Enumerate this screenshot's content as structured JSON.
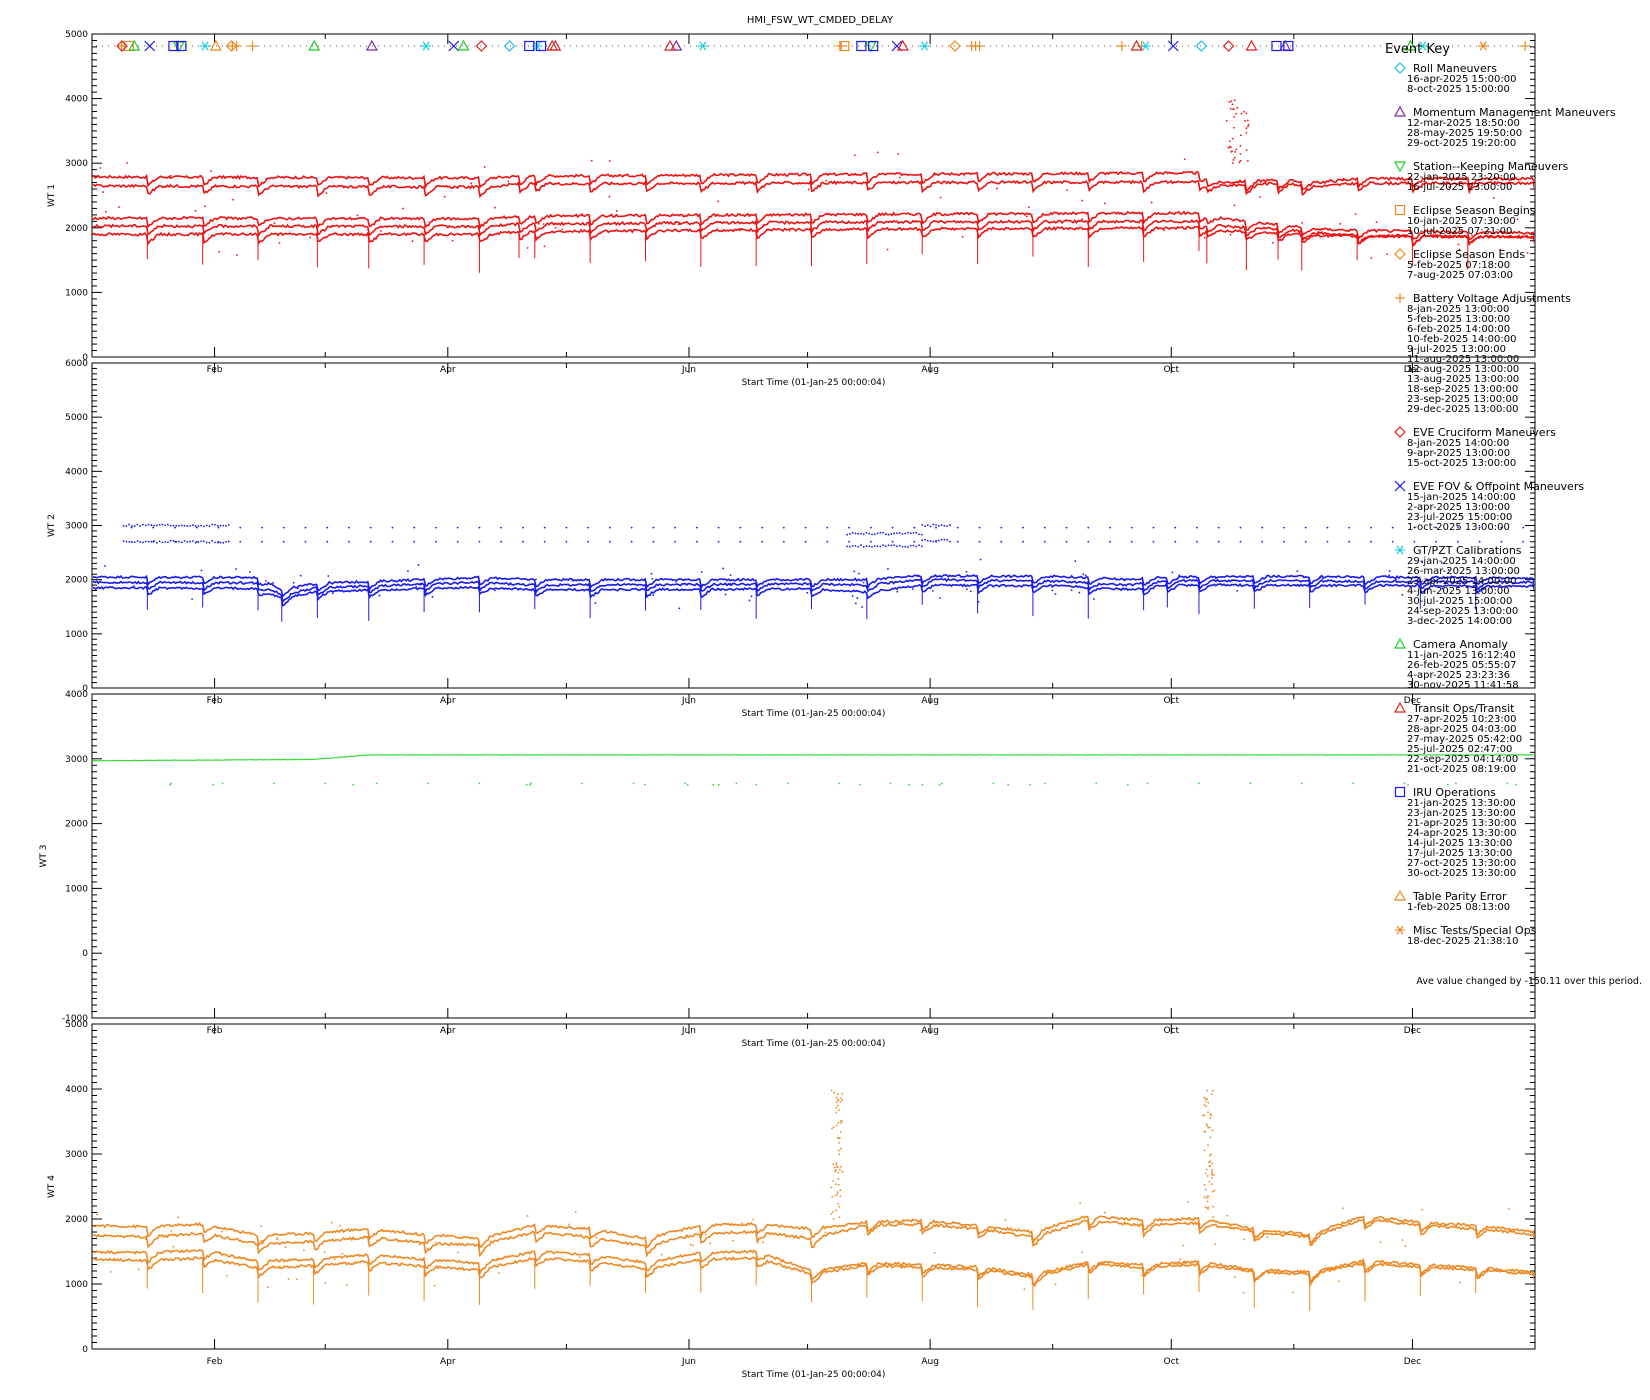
{
  "title": "HMI_FSW_WT_CMDED_DELAY",
  "x_axis_label": "Start Time (01-Jan-25 00:00:04)",
  "month_labels": [
    "Feb",
    "Apr",
    "Jun",
    "Aug",
    "Oct",
    "Dec"
  ],
  "note": "Ave value changed by -150.11 over this period.",
  "event_key": {
    "title": "Event Key",
    "events": [
      {
        "name": "Roll Maneuvers",
        "symbol": "diamond",
        "color": "#22bbee",
        "dates": [
          "16-apr-2025 15:00:00",
          "8-oct-2025 15:00:00"
        ],
        "days": [
          105.6,
          280.6
        ]
      },
      {
        "name": "Momentum Management Maneuvers",
        "symbol": "triangle",
        "color": "#7a2aa8",
        "dates": [
          "12-mar-2025 18:50:00",
          "28-may-2025 19:50:00",
          "29-oct-2025 19:20:00"
        ],
        "days": [
          70.8,
          147.8,
          301.8
        ]
      },
      {
        "name": "Station--Keeping Maneuvers",
        "symbol": "triangle-down",
        "color": "#22cc22",
        "dates": [
          "22-jan-2025 23:20:00",
          "16-jul-2025 23:00:00"
        ],
        "days": [
          21.97,
          196.96
        ]
      },
      {
        "name": "Eclipse Season Begins",
        "symbol": "square",
        "color": "#ee8822",
        "dates": [
          "10-jan-2025 07:30:00",
          "10-jul-2025 07:21:00"
        ],
        "days": [
          9.3,
          190.3
        ]
      },
      {
        "name": "Eclipse Season Ends",
        "symbol": "diamond",
        "color": "#ee8822",
        "dates": [
          "5-feb-2025 07:18:00",
          "7-aug-2025 07:03:00"
        ],
        "days": [
          35.3,
          218.3
        ]
      },
      {
        "name": "Battery Voltage Adjustments",
        "symbol": "plus",
        "color": "#ee8822",
        "dates": [
          "8-jan-2025 13:00:00",
          "5-feb-2025 13:00:00",
          "6-feb-2025 14:00:00",
          "10-feb-2025 14:00:00",
          "9-jul-2025 13:00:00",
          "11-aug-2025 13:00:00",
          "12-aug-2025 13:00:00",
          "13-aug-2025 13:00:00",
          "18-sep-2025 13:00:00",
          "23-sep-2025 13:00:00",
          "29-dec-2025 13:00:00"
        ],
        "days": [
          7.5,
          35.5,
          36.6,
          40.6,
          189.5,
          222.5,
          223.5,
          224.5,
          260.5,
          265.5,
          362.5
        ]
      },
      {
        "name": "EVE Cruciform Maneuvers",
        "symbol": "diamond",
        "color": "#dd2222",
        "dates": [
          "8-jan-2025 14:00:00",
          "9-apr-2025 13:00:00",
          "15-oct-2025 13:00:00"
        ],
        "days": [
          7.6,
          98.5,
          287.5
        ]
      },
      {
        "name": "EVE FOV & Offpoint Maneuvers",
        "symbol": "cross",
        "color": "#1a1aee",
        "dates": [
          "15-jan-2025 14:00:00",
          "2-apr-2025 13:00:00",
          "23-jul-2025 15:00:00",
          "1-oct-2025 13:00:00"
        ],
        "days": [
          14.6,
          91.5,
          203.6,
          273.5
        ]
      },
      {
        "name": "GT/PZT Calibrations",
        "symbol": "asterisk",
        "color": "#22ccdd",
        "dates": [
          "29-jan-2025 14:00:00",
          "26-mar-2025 13:00:00",
          "23-apr-2025 14:00:00",
          "4-jun-2025 13:00:00",
          "30-jul-2025 15:00:00",
          "24-sep-2025 13:00:00",
          "3-dec-2025 14:00:00"
        ],
        "days": [
          28.6,
          84.5,
          112.6,
          154.5,
          210.6,
          266.5,
          336.6
        ]
      },
      {
        "name": "Camera Anomaly",
        "symbol": "triangle",
        "color": "#22cc22",
        "dates": [
          "11-jan-2025 16:12:40",
          "26-feb-2025 05:55:07",
          "4-apr-2025 23:23:36",
          "30-nov-2025 11:41:58"
        ],
        "days": [
          10.7,
          56.2,
          93.97,
          333.5
        ]
      },
      {
        "name": "Transit Ops/Transit",
        "symbol": "triangle",
        "color": "#dd2222",
        "dates": [
          "27-apr-2025 10:23:00",
          "28-apr-2025 04:03:00",
          "27-may-2025 05:42:00",
          "25-jul-2025 02:47:00",
          "22-sep-2025 04:14:00",
          "21-oct-2025 08:19:00"
        ],
        "days": [
          116.4,
          117.2,
          146.2,
          205.1,
          264.2,
          293.3
        ]
      },
      {
        "name": "IRU Operations",
        "symbol": "square",
        "color": "#1a1aee",
        "dates": [
          "21-jan-2025 13:30:00",
          "23-jan-2025 13:30:00",
          "21-apr-2025 13:30:00",
          "24-apr-2025 13:30:00",
          "14-jul-2025 13:30:00",
          "17-jul-2025 13:30:00",
          "27-oct-2025 13:30:00",
          "30-oct-2025 13:30:00"
        ],
        "days": [
          20.6,
          22.6,
          110.6,
          113.6,
          194.6,
          197.6,
          299.6,
          302.6
        ]
      },
      {
        "name": "Table Parity Error",
        "symbol": "triangle",
        "color": "#ee8822",
        "dates": [
          "1-feb-2025 08:13:00"
        ],
        "days": [
          31.3
        ]
      },
      {
        "name": "Misc Tests/Special Ops",
        "symbol": "asterisk",
        "color": "#ee8822",
        "dates": [
          "18-dec-2025 21:38:10"
        ],
        "days": [
          351.9
        ]
      }
    ]
  },
  "chart_data": [
    {
      "type": "line",
      "ylabel": "WT 1",
      "color": "#ee1111",
      "x_range_days": [
        0,
        365
      ],
      "ylim": [
        0,
        5000
      ],
      "yticks": [
        0,
        1000,
        2000,
        3000,
        4000,
        5000
      ],
      "segment_boundaries_days": [
        0,
        14,
        28,
        42,
        57,
        70,
        84,
        98,
        108,
        112,
        126,
        140,
        154,
        168,
        182,
        196,
        210,
        224,
        238,
        252,
        266,
        280,
        282,
        292,
        300,
        306,
        320,
        334,
        348,
        365
      ],
      "series": [
        {
          "x_days": [
            0,
            100,
            108,
            200,
            280,
            285,
            300,
            310,
            320,
            365
          ],
          "values": [
            2790,
            2770,
            2800,
            2830,
            2850,
            2700,
            2740,
            2700,
            2760,
            2760
          ]
        },
        {
          "x_days": [
            0,
            100,
            108,
            200,
            280,
            285,
            300,
            310,
            320,
            365
          ],
          "values": [
            2650,
            2630,
            2680,
            2700,
            2710,
            2650,
            2690,
            2640,
            2690,
            2690
          ]
        },
        {
          "x_days": [
            0,
            100,
            108,
            200,
            280,
            285,
            300,
            310,
            320,
            365
          ],
          "values": [
            2150,
            2140,
            2180,
            2210,
            2230,
            2150,
            2050,
            1980,
            1960,
            1920
          ]
        },
        {
          "x_days": [
            0,
            100,
            108,
            200,
            280,
            285,
            300,
            310,
            320,
            365
          ],
          "values": [
            2030,
            2020,
            2060,
            2090,
            2100,
            2030,
            1980,
            1920,
            1880,
            1860
          ]
        },
        {
          "x_days": [
            0,
            100,
            108,
            200,
            280,
            285,
            300,
            310,
            320,
            365
          ],
          "values": [
            1900,
            1900,
            1940,
            1980,
            2000,
            1960,
            1920,
            1880,
            1870,
            1860
          ]
        }
      ]
    },
    {
      "type": "line",
      "ylabel": "WT 2",
      "color": "#1a1aee",
      "x_range_days": [
        0,
        365
      ],
      "ylim": [
        0,
        6000
      ],
      "yticks": [
        0,
        1000,
        2000,
        3000,
        4000,
        5000,
        6000
      ],
      "segment_boundaries_days": [
        0,
        14,
        28,
        42,
        48,
        57,
        70,
        84,
        98,
        112,
        126,
        140,
        154,
        168,
        182,
        196,
        210,
        224,
        238,
        252,
        266,
        272,
        280,
        294,
        308,
        322,
        336,
        350,
        365
      ],
      "sparse_bands": [
        {
          "x_days": [
            8,
            35
          ],
          "values": [
            3000,
            2700
          ]
        },
        {
          "x_days": [
            191,
            210
          ],
          "values": [
            2850,
            2620
          ]
        },
        {
          "x_days": [
            210,
            217
          ],
          "values": [
            3000,
            2720
          ]
        }
      ],
      "series": [
        {
          "x_days": [
            0,
            42,
            48,
            57,
            98,
            112,
            182,
            196,
            210,
            245,
            262,
            272,
            300,
            365
          ],
          "values": [
            2050,
            2040,
            1820,
            1930,
            2040,
            2000,
            2000,
            2000,
            2070,
            2060,
            2000,
            2050,
            2060,
            2030
          ]
        },
        {
          "x_days": [
            0,
            42,
            48,
            57,
            98,
            112,
            182,
            196,
            210,
            245,
            262,
            272,
            300,
            365
          ],
          "values": [
            1950,
            1940,
            1720,
            1850,
            1950,
            1900,
            1920,
            1900,
            2000,
            1970,
            1900,
            1980,
            1980,
            1950
          ]
        },
        {
          "x_days": [
            0,
            42,
            48,
            57,
            98,
            112,
            182,
            196,
            210,
            245,
            262,
            272,
            300,
            365
          ],
          "values": [
            1850,
            1840,
            1650,
            1780,
            1860,
            1810,
            1830,
            1770,
            1900,
            1880,
            1820,
            1900,
            1900,
            1880
          ]
        }
      ]
    },
    {
      "type": "line",
      "ylabel": "WT 3",
      "color": "#33dd33",
      "x_range_days": [
        0,
        365
      ],
      "ylim": [
        -1000,
        4000
      ],
      "yticks": [
        -1000,
        0,
        1000,
        2000,
        3000,
        4000
      ],
      "series": [
        {
          "x_days": [
            0,
            56,
            70,
            365
          ],
          "values": [
            2970,
            2990,
            3060,
            3060
          ]
        }
      ]
    },
    {
      "type": "line",
      "ylabel": "WT 4",
      "color": "#ee8822",
      "x_range_days": [
        0,
        365
      ],
      "ylim": [
        0,
        5000
      ],
      "yticks": [
        0,
        1000,
        2000,
        3000,
        4000,
        5000
      ],
      "segment_boundaries_days": [
        0,
        14,
        28,
        42,
        56,
        70,
        84,
        98,
        112,
        126,
        140,
        154,
        168,
        182,
        196,
        210,
        224,
        238,
        252,
        266,
        280,
        294,
        308,
        322,
        336,
        350,
        365
      ],
      "series": [
        {
          "x_days": [
            0,
            14,
            28,
            42,
            56,
            70,
            84,
            98,
            112,
            126,
            140,
            154,
            168,
            182,
            196,
            210,
            224,
            238,
            252,
            266,
            280,
            294,
            308,
            322,
            336,
            350,
            365
          ],
          "values": [
            1900,
            1880,
            1920,
            1750,
            1780,
            1850,
            1760,
            1700,
            1900,
            1850,
            1700,
            1900,
            1920,
            1850,
            1950,
            1980,
            1900,
            1800,
            2050,
            1980,
            2000,
            1850,
            1760,
            2050,
            1950,
            1900,
            1800
          ]
        },
        {
          "x_days": [
            0,
            14,
            28,
            42,
            56,
            70,
            84,
            98,
            112,
            126,
            140,
            154,
            168,
            182,
            196,
            210,
            224,
            238,
            252,
            266,
            280,
            294,
            308,
            322,
            336,
            350,
            365
          ],
          "values": [
            1750,
            1720,
            1780,
            1620,
            1650,
            1720,
            1630,
            1600,
            1800,
            1720,
            1580,
            1780,
            1800,
            1700,
            1900,
            1920,
            1850,
            1720,
            1980,
            1900,
            1940,
            1800,
            1720,
            2000,
            1900,
            1850,
            1760
          ]
        },
        {
          "x_days": [
            0,
            14,
            28,
            42,
            56,
            70,
            84,
            98,
            112,
            126,
            140,
            154,
            168,
            182,
            196,
            210,
            224,
            238,
            252,
            266,
            280,
            294,
            308,
            322,
            336,
            350,
            365
          ],
          "values": [
            1500,
            1480,
            1520,
            1350,
            1380,
            1450,
            1380,
            1320,
            1500,
            1450,
            1330,
            1480,
            1500,
            1200,
            1320,
            1300,
            1260,
            1140,
            1340,
            1300,
            1340,
            1220,
            1180,
            1360,
            1300,
            1250,
            1180
          ]
        },
        {
          "x_days": [
            0,
            14,
            28,
            42,
            56,
            70,
            84,
            98,
            112,
            126,
            140,
            154,
            168,
            182,
            196,
            210,
            224,
            238,
            252,
            266,
            280,
            294,
            308,
            322,
            336,
            350,
            365
          ],
          "values": [
            1380,
            1360,
            1400,
            1250,
            1280,
            1340,
            1270,
            1220,
            1400,
            1350,
            1230,
            1380,
            1400,
            1150,
            1280,
            1260,
            1220,
            1110,
            1300,
            1260,
            1300,
            1190,
            1150,
            1320,
            1260,
            1220,
            1150
          ]
        }
      ]
    }
  ]
}
